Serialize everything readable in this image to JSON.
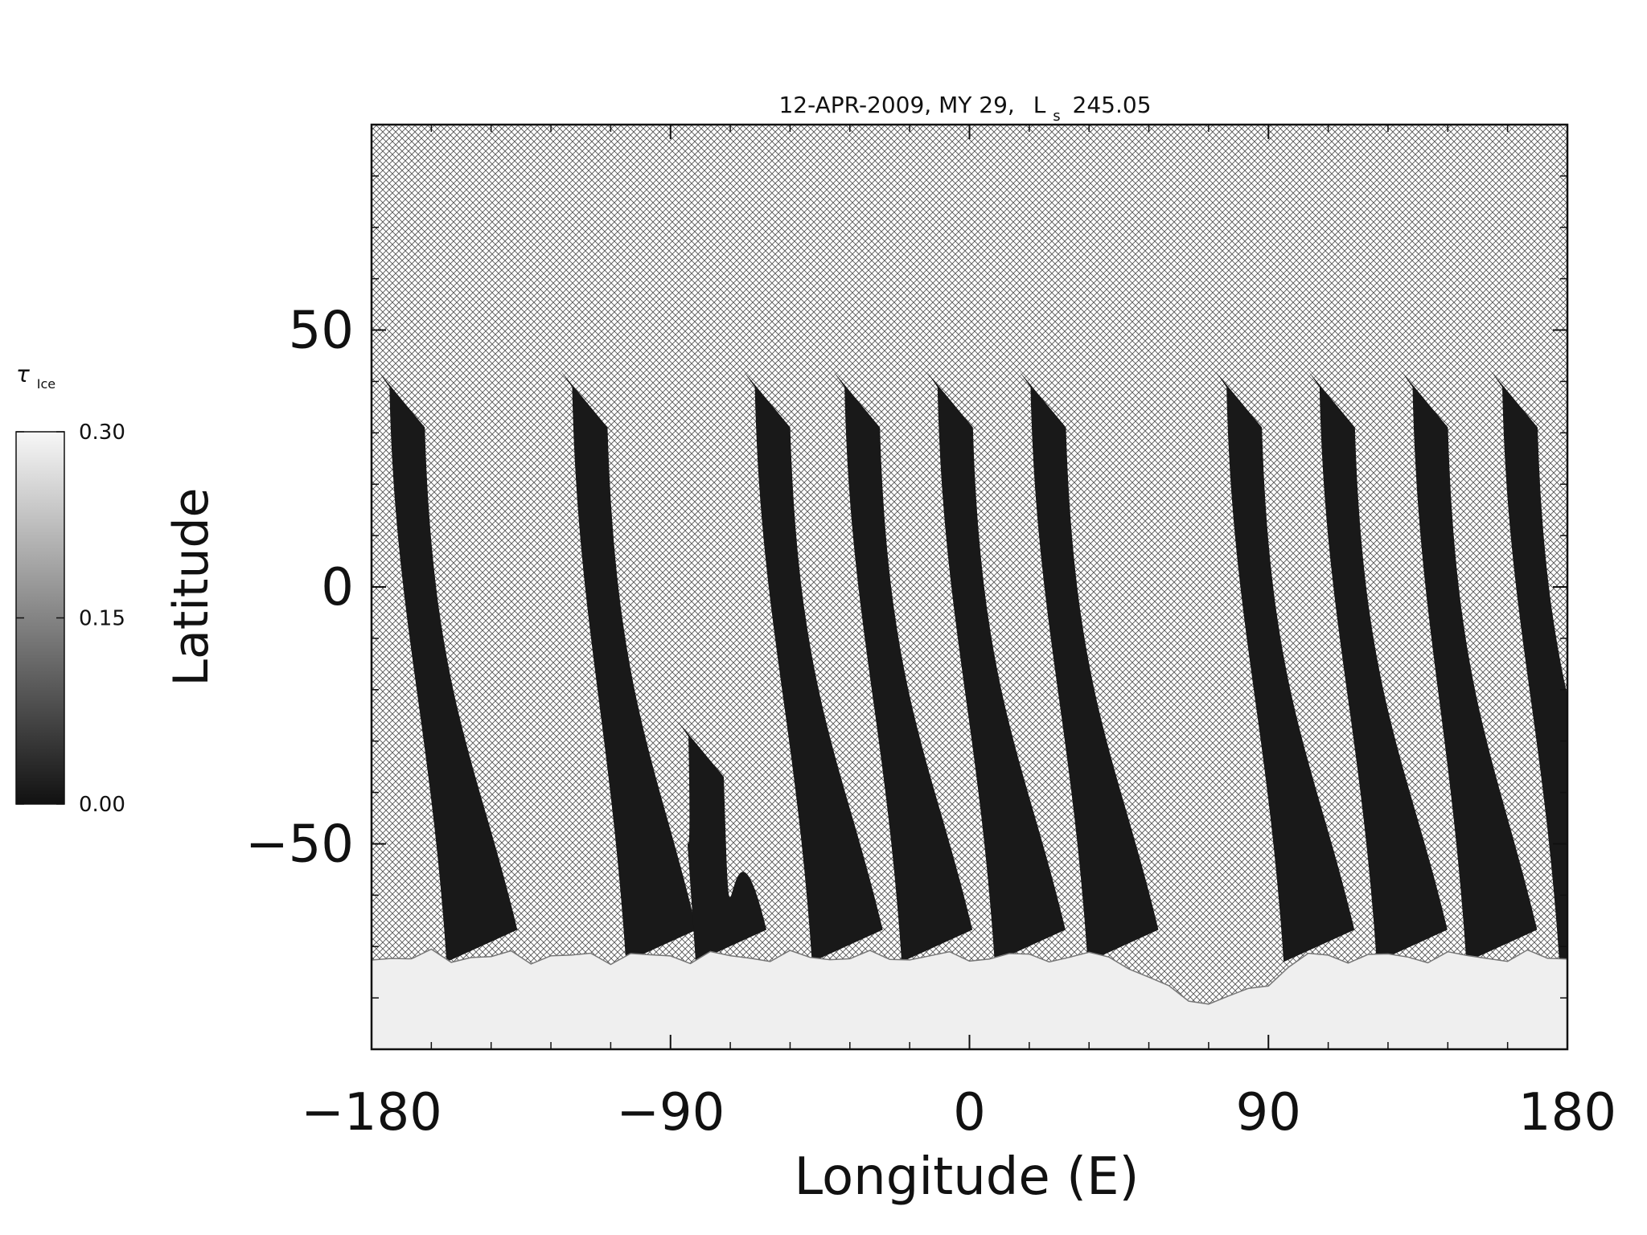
{
  "chart_data": {
    "type": "heatmap",
    "title_parts": {
      "date": "12-APR-2009, MY 29,",
      "ls_symbol": "L",
      "ls_subscript": "s",
      "ls_value": "245.05"
    },
    "xlabel": "Longitude (E)",
    "ylabel": "Latitude",
    "xlim": [
      -180,
      180
    ],
    "ylim": [
      -90,
      90
    ],
    "x_ticks": [
      -180,
      -90,
      0,
      90,
      180
    ],
    "x_tick_labels": [
      "−180",
      "−90",
      "0",
      "90",
      "180"
    ],
    "y_ticks": [
      -50,
      0,
      50
    ],
    "y_tick_labels": [
      "−50",
      "0",
      "50"
    ],
    "colorbar": {
      "label_symbol": "τ",
      "label_subscript": "Ice",
      "min": 0.0,
      "max": 0.3,
      "tick_values": [
        0.0,
        0.15,
        0.3
      ],
      "tick_labels": [
        "0.00",
        "0.15",
        "0.30"
      ]
    },
    "no_data_fill": "crosshatch",
    "colors": {
      "low": "#111111",
      "high": "#f7f7f7",
      "hatch": "#555555"
    },
    "swaths": [
      {
        "lon_top": -178,
        "lon_bottom": -155,
        "lat_top": 42,
        "lat_bottom": -73,
        "value": 0.01
      },
      {
        "lon_top": -123,
        "lon_bottom": -101,
        "lat_top": 42,
        "lat_bottom": -73,
        "value": 0.01
      },
      {
        "lon_top": -68,
        "lon_bottom": -45,
        "lat_top": 42,
        "lat_bottom": -73,
        "value": 0.01
      },
      {
        "lon_top": -41,
        "lon_bottom": -18,
        "lat_top": 42,
        "lat_bottom": -73,
        "value": 0.01
      },
      {
        "lon_top": -13,
        "lon_bottom": 10,
        "lat_top": 42,
        "lat_bottom": -73,
        "value": 0.01
      },
      {
        "lon_top": 15,
        "lon_bottom": 38,
        "lat_top": 42,
        "lat_bottom": -73,
        "value": 0.01
      },
      {
        "lon_top": 74,
        "lon_bottom": 97,
        "lat_top": 42,
        "lat_bottom": -73,
        "value": 0.01
      },
      {
        "lon_top": 102,
        "lon_bottom": 125,
        "lat_top": 42,
        "lat_bottom": -73,
        "value": 0.01
      },
      {
        "lon_top": 130,
        "lon_bottom": 152,
        "lat_top": 42,
        "lat_bottom": -73,
        "value": 0.01
      },
      {
        "lon_top": 157,
        "lon_bottom": 180,
        "lat_top": 42,
        "lat_bottom": -73,
        "value": 0.01
      },
      {
        "lon_top": -88,
        "lon_bottom": -80,
        "lat_top": -26,
        "lat_bottom": -73,
        "value": 0.01
      }
    ],
    "polar_cap_edge_lat": -72,
    "polar_cap_value": 0.29
  }
}
